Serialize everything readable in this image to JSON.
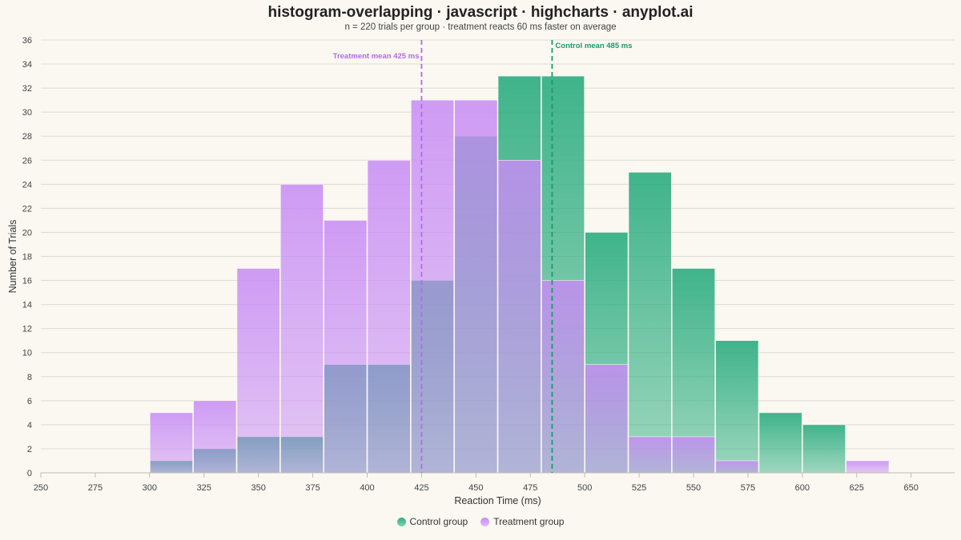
{
  "title": "histogram-overlapping · javascript · highcharts · anyplot.ai",
  "subtitle": "n = 220 trials per group · treatment reacts 60 ms faster on average",
  "chart_data": {
    "type": "bar",
    "subtype": "overlapping-histogram",
    "xlabel": "Reaction Time (ms)",
    "ylabel": "Number of Trials",
    "xlim": [
      250,
      670
    ],
    "ylim": [
      0,
      36
    ],
    "xticks": [
      250,
      275,
      300,
      325,
      350,
      375,
      400,
      425,
      450,
      475,
      500,
      525,
      550,
      575,
      600,
      625,
      650
    ],
    "yticks": [
      0,
      2,
      4,
      6,
      8,
      10,
      12,
      14,
      16,
      18,
      20,
      22,
      24,
      26,
      28,
      30,
      32,
      34,
      36
    ],
    "bin_width": 20,
    "bin_starts": [
      300,
      320,
      340,
      360,
      380,
      400,
      420,
      440,
      460,
      480,
      500,
      520,
      540,
      560,
      580,
      600,
      620
    ],
    "grid": true,
    "legend_position": "bottom-center",
    "series": [
      {
        "name": "Control group",
        "color": "#2FAE82",
        "values": [
          1,
          2,
          3,
          3,
          9,
          9,
          16,
          28,
          33,
          33,
          20,
          25,
          17,
          11,
          5,
          4,
          0
        ]
      },
      {
        "name": "Treatment group",
        "color": "#C78BF5",
        "values": [
          5,
          6,
          17,
          24,
          21,
          26,
          31,
          31,
          26,
          16,
          9,
          3,
          3,
          1,
          0,
          0,
          1
        ]
      }
    ],
    "annotations": [
      {
        "label": "Treatment mean 425 ms",
        "x": 425,
        "color": "#B768EC"
      },
      {
        "label": "Control mean 485 ms",
        "x": 485,
        "color": "#1A9A6C"
      }
    ]
  }
}
